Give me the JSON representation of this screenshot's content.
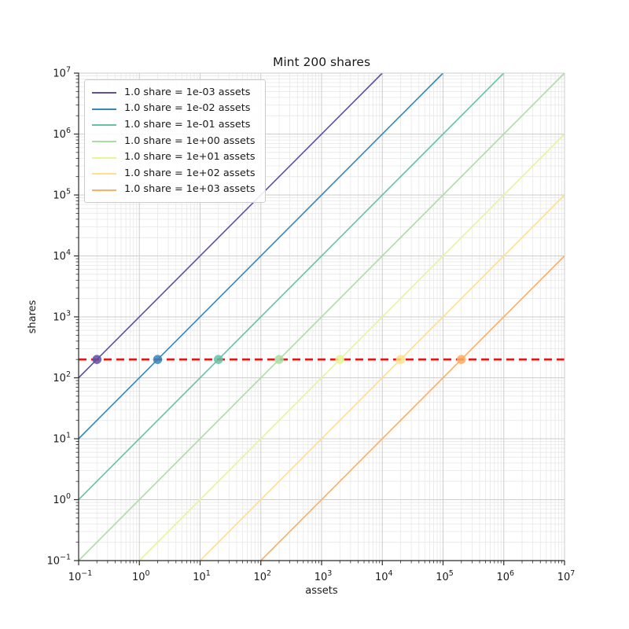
{
  "figure": {
    "title": "Mint 200 shares"
  },
  "chart_data": {
    "type": "line",
    "title": "Mint 200 shares",
    "xlabel": "assets",
    "ylabel": "shares",
    "xscale": "log",
    "yscale": "log",
    "xlim": [
      0.1,
      10000000
    ],
    "ylim": [
      0.1,
      10000000
    ],
    "x_tick_exponents": [
      -1,
      0,
      1,
      2,
      3,
      4,
      5,
      6,
      7
    ],
    "y_tick_exponents": [
      -1,
      0,
      1,
      2,
      3,
      4,
      5,
      6,
      7
    ],
    "grid": {
      "major": true,
      "minor": true
    },
    "legend_position": "upper-left",
    "mint_shares": 200,
    "series": [
      {
        "label": "1.0 share = 1e-03 assets",
        "assets_per_share": 0.001,
        "color": "#5e4fa2",
        "point": {
          "assets": 0.2,
          "shares": 200
        }
      },
      {
        "label": "1.0 share = 1e-02 assets",
        "assets_per_share": 0.01,
        "color": "#3288bd",
        "point": {
          "assets": 2,
          "shares": 200
        }
      },
      {
        "label": "1.0 share = 1e-01 assets",
        "assets_per_share": 0.1,
        "color": "#66c2a5",
        "point": {
          "assets": 20,
          "shares": 200
        }
      },
      {
        "label": "1.0 share = 1e+00 assets",
        "assets_per_share": 1,
        "color": "#abdda4",
        "point": {
          "assets": 200,
          "shares": 200
        }
      },
      {
        "label": "1.0 share = 1e+01 assets",
        "assets_per_share": 10,
        "color": "#e6f598",
        "point": {
          "assets": 2000,
          "shares": 200
        }
      },
      {
        "label": "1.0 share = 1e+02 assets",
        "assets_per_share": 100,
        "color": "#fee08b",
        "point": {
          "assets": 20000,
          "shares": 200
        }
      },
      {
        "label": "1.0 share = 1e+03 assets",
        "assets_per_share": 1000,
        "color": "#fdae61",
        "point": {
          "assets": 200000,
          "shares": 200
        }
      }
    ],
    "reference_line": {
      "orientation": "horizontal",
      "value": 200,
      "color": "#e61414",
      "style": "dashed"
    },
    "style_colors": {
      "grid_major": "#cdcdcd",
      "grid_minor": "#e7e7e7",
      "spine_dark": "#2b2b2b",
      "spine_light": "#cccccc"
    }
  }
}
